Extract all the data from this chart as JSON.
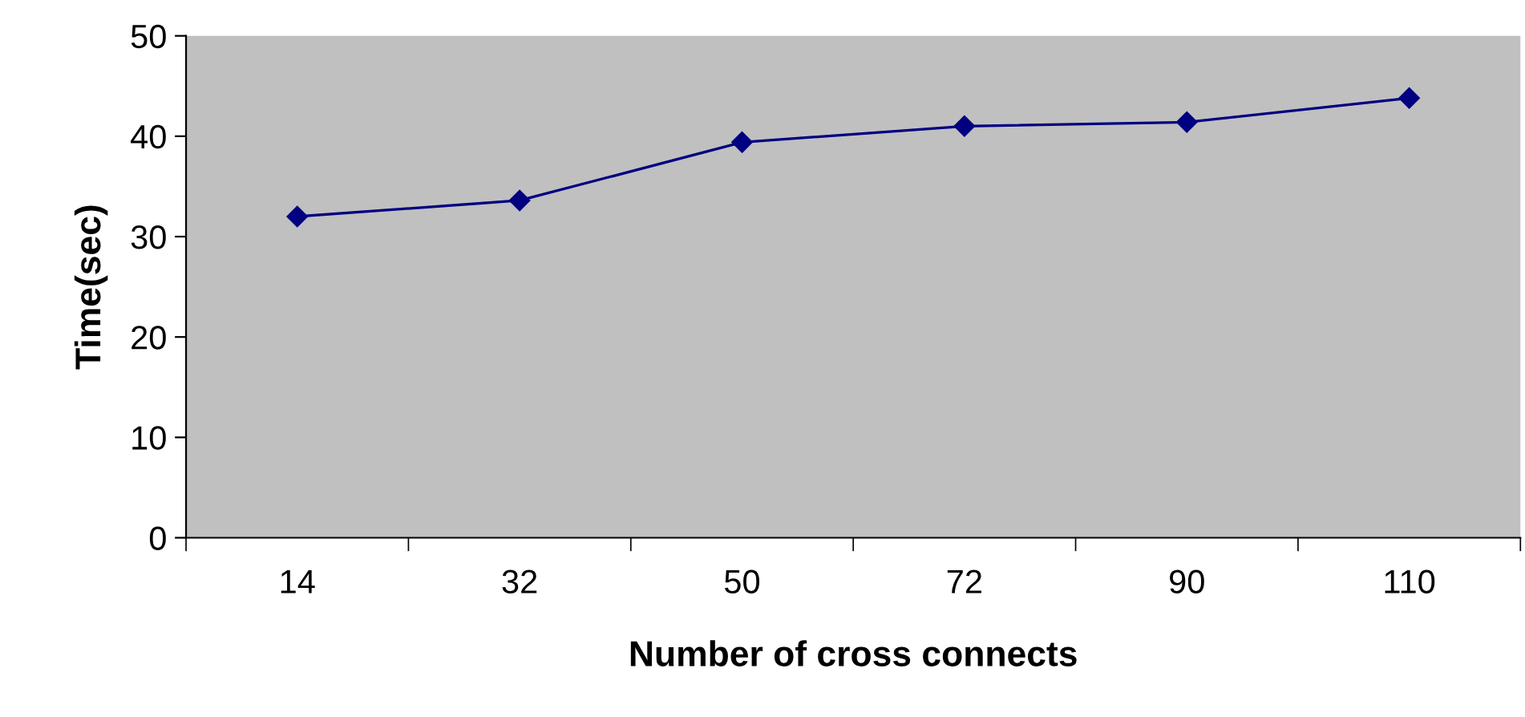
{
  "chart_data": {
    "type": "line",
    "xlabel": "Number of cross connects",
    "ylabel": "Time(sec)",
    "categories": [
      "14",
      "32",
      "50",
      "72",
      "90",
      "110"
    ],
    "series": [
      {
        "color": "#000080",
        "values": [
          32.0,
          33.6,
          39.4,
          41.0,
          41.4,
          43.8
        ]
      }
    ],
    "ylim": [
      0,
      50
    ],
    "yticks": [
      0,
      10,
      20,
      30,
      40,
      50
    ],
    "grid": false,
    "marker": "diamond",
    "line_style": "solid",
    "legend": false
  }
}
